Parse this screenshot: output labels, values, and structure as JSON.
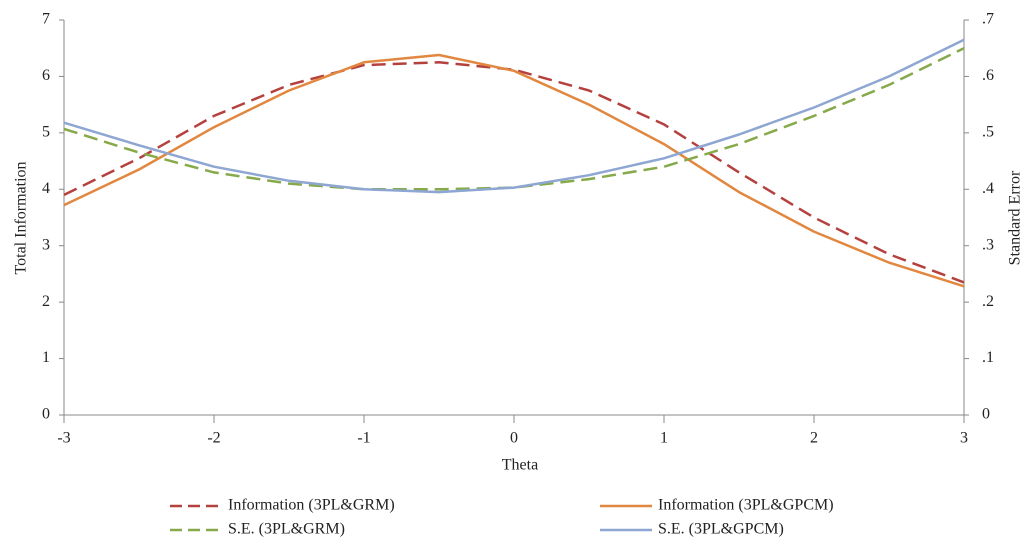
{
  "chart_data": {
    "type": "line",
    "x_label": "Theta",
    "y_label": "Total Information",
    "y2_label": "Standard Error",
    "x": [
      -3,
      -2.5,
      -2,
      -1.5,
      -1,
      -0.5,
      0,
      0.5,
      1,
      1.5,
      2,
      2.5,
      3
    ],
    "xlim": [
      -3,
      3
    ],
    "xticks": [
      -3,
      -2,
      -1,
      0,
      1,
      2,
      3
    ],
    "ylim": [
      0,
      7
    ],
    "yticks": [
      0,
      1,
      2,
      3,
      4,
      5,
      6,
      7
    ],
    "y2lim": [
      0,
      0.7
    ],
    "y2ticks": [
      0,
      {
        "value": 0.1,
        "label": ".1"
      },
      {
        "value": 0.2,
        "label": ".2"
      },
      {
        "value": 0.3,
        "label": ".3"
      },
      {
        "value": 0.4,
        "label": ".4"
      },
      {
        "value": 0.5,
        "label": ".5"
      },
      {
        "value": 0.6,
        "label": ".6"
      },
      {
        "value": 0.7,
        "label": ".7"
      }
    ],
    "series": [
      {
        "name": "Information (3PL&GRM)",
        "color": "#b5413f",
        "dashed": true,
        "values": [
          3.9,
          4.55,
          5.3,
          5.85,
          6.2,
          6.25,
          6.12,
          5.75,
          5.15,
          4.3,
          3.5,
          2.85,
          2.35
        ]
      },
      {
        "name": "Information (3PL&GPCM)",
        "color": "#e2873f",
        "dashed": false,
        "values": [
          3.72,
          4.35,
          5.1,
          5.75,
          6.25,
          6.38,
          6.1,
          5.5,
          4.8,
          3.95,
          3.25,
          2.7,
          2.28
        ]
      },
      {
        "name": "S.E. (3PL&GRM)",
        "color": "#86a94a",
        "dashed": true,
        "axis": "y2",
        "values": [
          0.507,
          0.465,
          0.43,
          0.41,
          0.4,
          0.4,
          0.403,
          0.418,
          0.44,
          0.48,
          0.53,
          0.585,
          0.65
        ]
      },
      {
        "name": "S.E. (3PL&GPCM)",
        "color": "#8ea6d2",
        "dashed": false,
        "axis": "y2",
        "values": [
          0.518,
          0.478,
          0.44,
          0.415,
          0.4,
          0.395,
          0.403,
          0.425,
          0.455,
          0.497,
          0.545,
          0.6,
          0.665
        ]
      }
    ]
  }
}
